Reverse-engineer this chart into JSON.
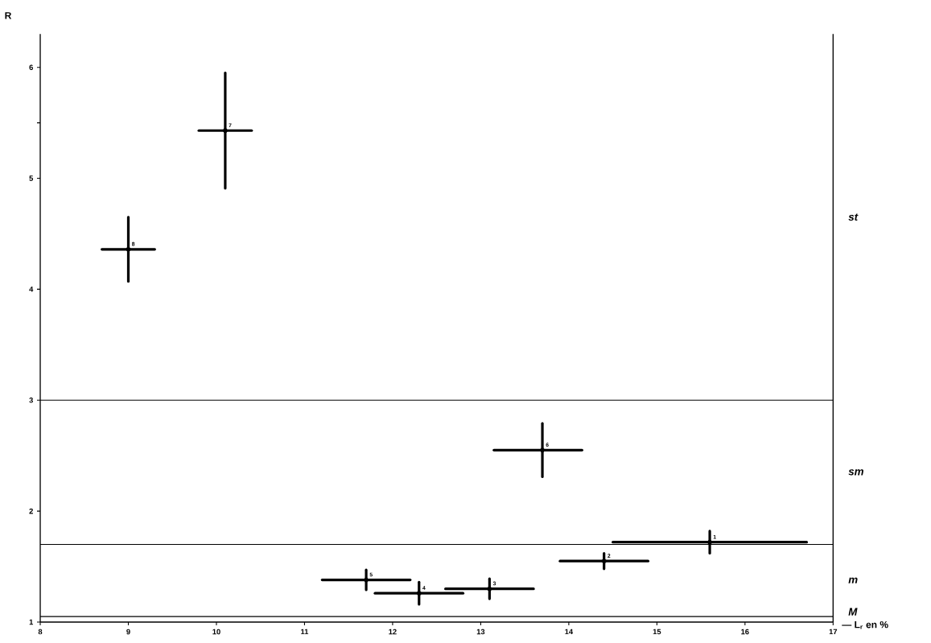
{
  "chart_data": {
    "type": "scatter",
    "xlabel": "— L$_{r}$ en %",
    "ylabel": "R",
    "x": [
      15.6,
      14.4,
      13.1,
      12.3,
      11.7,
      13.7,
      10.1,
      9.0
    ],
    "values": [
      1.72,
      1.55,
      1.3,
      1.26,
      1.38,
      2.55,
      5.43,
      4.36
    ],
    "xerrors": [
      [
        14.5,
        16.7
      ],
      [
        13.9,
        14.9
      ],
      [
        12.6,
        13.6
      ],
      [
        11.8,
        12.8
      ],
      [
        11.2,
        12.2
      ],
      [
        13.15,
        14.15
      ],
      [
        9.8,
        10.4
      ],
      [
        8.7,
        9.3
      ]
    ],
    "errors": [
      0.1,
      0.07,
      0.09,
      0.1,
      0.09,
      0.24,
      0.52,
      0.29
    ],
    "color": "#000000",
    "xlim": [
      8,
      17
    ],
    "ylim": [
      1,
      6.3
    ],
    "xticks": [
      8,
      9,
      10,
      11,
      12,
      13,
      14,
      15,
      16,
      17
    ],
    "yticks": [
      1,
      2,
      3,
      4,
      5,
      {
        "value": 5.5,
        "label": null
      },
      6
    ],
    "grid": false,
    "ref_lines": [
      {
        "axis": "y",
        "value": 3
      },
      {
        "axis": "y",
        "value": 1.7
      },
      {
        "axis": "y",
        "value": 1.05
      }
    ],
    "annotations": [
      {
        "text": "1",
        "x": 15.6,
        "y": 1.72
      },
      {
        "text": "2",
        "x": 14.4,
        "y": 1.55
      },
      {
        "text": "3",
        "x": 13.1,
        "y": 1.3
      },
      {
        "text": "4",
        "x": 12.3,
        "y": 1.26
      },
      {
        "text": "5",
        "x": 11.7,
        "y": 1.38
      },
      {
        "text": "6",
        "x": 13.7,
        "y": 2.55
      },
      {
        "text": "7",
        "x": 10.1,
        "y": 5.43
      },
      {
        "text": "8",
        "x": 9.0,
        "y": 4.36
      },
      "st",
      "sm",
      "m",
      "M"
    ]
  }
}
